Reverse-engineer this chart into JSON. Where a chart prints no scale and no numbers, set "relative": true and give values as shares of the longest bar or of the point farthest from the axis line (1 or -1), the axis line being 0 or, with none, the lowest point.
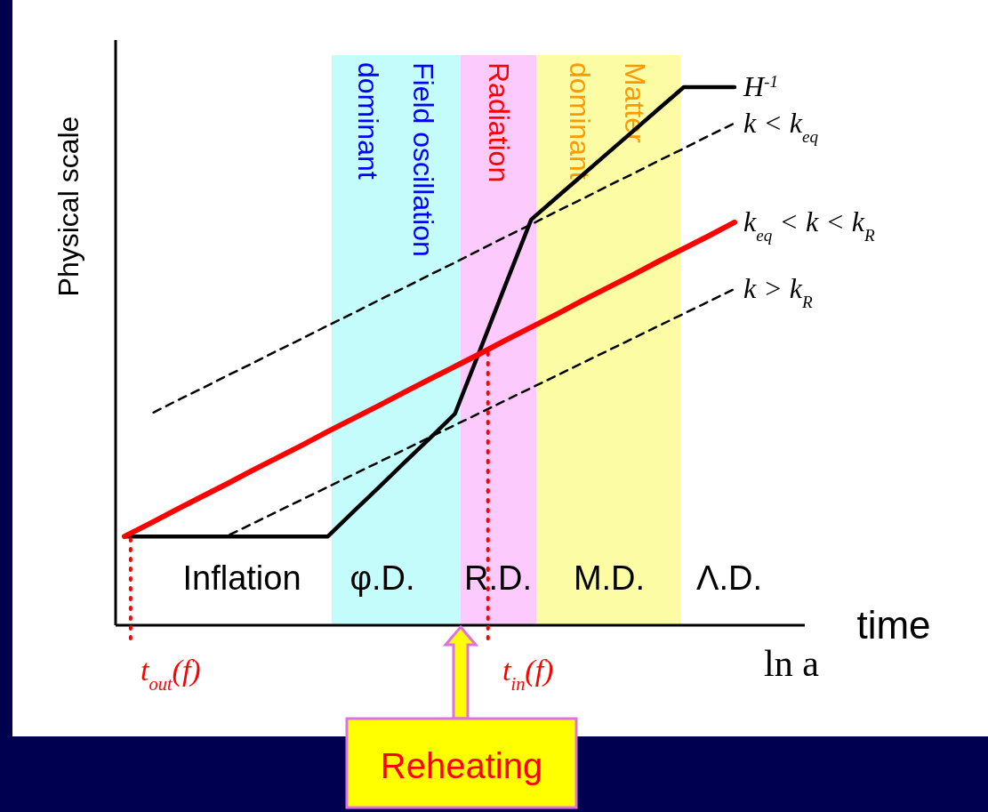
{
  "chart_data": {
    "type": "line",
    "relative": true,
    "legend": false,
    "ylabel": "Physical scale",
    "xlabel": "ln a",
    "categories": [
      null,
      null,
      null,
      null,
      null,
      null,
      null,
      null,
      null,
      null,
      null,
      null,
      null,
      null,
      null,
      null,
      null,
      null,
      null,
      null,
      null,
      null,
      null,
      null,
      null
    ],
    "series": [
      {
        "name": "H$^{-1}$",
        "color": "#000000",
        "line_style": "solid",
        "values": [
          0.165,
          0.165,
          0.165,
          0.165,
          0.165,
          0.165,
          0.165,
          0.165,
          0.165,
          0.211,
          0.256,
          0.302,
          0.347,
          0.393,
          0.513,
          0.634,
          0.754,
          0.795,
          0.836,
          0.877,
          0.918,
          0.959,
          1,
          1,
          1
        ]
      },
      {
        "name": "k < k$_{eq}$",
        "color": "#000000",
        "line_style": "dashed",
        "values": [
          null,
          0.392,
          0.416,
          0.439,
          0.463,
          0.486,
          0.51,
          0.533,
          0.557,
          0.58,
          0.604,
          0.627,
          0.651,
          0.674,
          0.698,
          0.722,
          0.745,
          0.769,
          0.792,
          0.816,
          0.839,
          0.863,
          0.886,
          0.91,
          0.933
        ]
      },
      {
        "name": "k$_{eq}$ < k < k$_{R}$",
        "color": "#ff0000",
        "line_style": "solid",
        "values": [
          0.165,
          0.189,
          0.214,
          0.238,
          0.262,
          0.287,
          0.311,
          0.335,
          0.36,
          0.384,
          0.408,
          0.433,
          0.457,
          0.481,
          0.505,
          0.53,
          0.554,
          0.578,
          0.603,
          0.627,
          0.651,
          0.676,
          0.7,
          0.724,
          0.749
        ]
      },
      {
        "name": "k > k$_{R}$",
        "color": "#000000",
        "line_style": "dashed",
        "values": [
          null,
          null,
          null,
          null,
          0.165,
          0.188,
          0.211,
          0.234,
          0.257,
          0.28,
          0.303,
          0.326,
          0.349,
          0.372,
          0.395,
          0.418,
          0.441,
          0.464,
          0.487,
          0.51,
          0.533,
          0.556,
          0.579,
          0.602,
          0.625
        ]
      }
    ],
    "annotations": [
      "Field oscillation dominant",
      "Radiation",
      "Matter dominant",
      "Inflation",
      "φ.D.",
      "R.D.",
      "M.D.",
      "Λ.D.",
      "time",
      "Reheating",
      "t$_{out}$(f)",
      "t$_{in}$(f)"
    ]
  }
}
